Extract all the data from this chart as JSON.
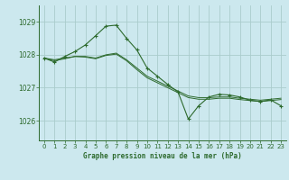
{
  "title": "Graphe pression niveau de la mer (hPa)",
  "background_color": "#cce8ee",
  "grid_color": "#aacccc",
  "line_color": "#2d6a2d",
  "xlim": [
    -0.5,
    23.5
  ],
  "ylim": [
    1025.4,
    1029.5
  ],
  "yticks": [
    1026,
    1027,
    1028,
    1029
  ],
  "xticks": [
    0,
    1,
    2,
    3,
    4,
    5,
    6,
    7,
    8,
    9,
    10,
    11,
    12,
    13,
    14,
    15,
    16,
    17,
    18,
    19,
    20,
    21,
    22,
    23
  ],
  "series1_x": [
    0,
    1,
    2,
    3,
    4,
    5,
    6,
    7,
    8,
    9,
    10,
    11,
    12,
    13,
    14,
    15,
    16,
    17,
    18,
    19,
    20,
    21,
    22,
    23
  ],
  "series1_y": [
    1027.9,
    1027.85,
    1027.9,
    1027.95,
    1027.95,
    1027.9,
    1028.0,
    1028.05,
    1027.85,
    1027.6,
    1027.35,
    1027.2,
    1027.05,
    1026.9,
    1026.75,
    1026.7,
    1026.7,
    1026.72,
    1026.72,
    1026.68,
    1026.65,
    1026.62,
    1026.65,
    1026.68
  ],
  "series2_x": [
    0,
    1,
    2,
    3,
    4,
    5,
    6,
    7,
    8,
    9,
    10,
    11,
    12,
    13,
    14,
    15,
    16,
    17,
    18,
    19,
    20,
    21,
    22,
    23
  ],
  "series2_y": [
    1027.9,
    1027.82,
    1027.88,
    1027.95,
    1027.93,
    1027.88,
    1027.98,
    1028.02,
    1027.82,
    1027.55,
    1027.3,
    1027.15,
    1027.0,
    1026.85,
    1026.7,
    1026.65,
    1026.65,
    1026.68,
    1026.68,
    1026.64,
    1026.61,
    1026.58,
    1026.61,
    1026.64
  ],
  "series_main_x": [
    0,
    1,
    2,
    3,
    4,
    5,
    6,
    7,
    8,
    9,
    10,
    11,
    12,
    13,
    14,
    15,
    16,
    17,
    18,
    19,
    20,
    21,
    22,
    23
  ],
  "series_main_y": [
    1027.9,
    1027.78,
    1027.95,
    1028.1,
    1028.3,
    1028.58,
    1028.87,
    1028.9,
    1028.5,
    1028.15,
    1027.6,
    1027.35,
    1027.1,
    1026.87,
    1026.05,
    1026.45,
    1026.72,
    1026.8,
    1026.78,
    1026.72,
    1026.62,
    1026.58,
    1026.63,
    1026.45
  ]
}
